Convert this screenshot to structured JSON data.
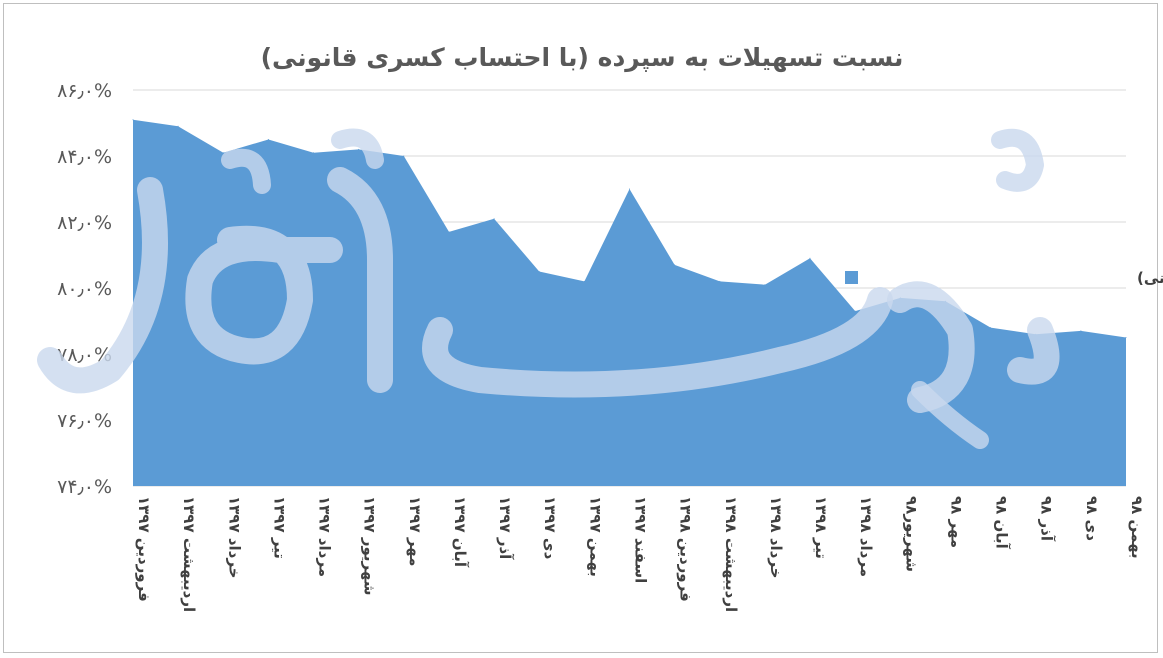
{
  "chart_data": {
    "type": "area",
    "title": "نسبت تسهیلات به سپرده (با احتساب کسری قانونی)",
    "xlabel": "",
    "ylabel": "",
    "ylim": [
      74,
      86
    ],
    "yticks": [
      {
        "value": 74,
        "label": "۷۴٫۰%"
      },
      {
        "value": 76,
        "label": "۷۶٫۰%"
      },
      {
        "value": 78,
        "label": "۷۸٫۰%"
      },
      {
        "value": 80,
        "label": "۸۰٫۰%"
      },
      {
        "value": 82,
        "label": "۸۲٫۰%"
      },
      {
        "value": 84,
        "label": "۸۴٫۰%"
      },
      {
        "value": 86,
        "label": "۸۶٫۰%"
      }
    ],
    "grid": true,
    "legend_position": "right",
    "categories": [
      "فروردین ۱۳۹۷",
      "اردیبهشت ۱۳۹۷",
      "خرداد ۱۳۹۷",
      "تیر ۱۳۹۷",
      "مرداد ۱۳۹۷",
      "شهریور ۱۳۹۷",
      "مهر ۱۳۹۷",
      "آبان ۱۳۹۷",
      "آذر ۱۳۹۷",
      "دی ۱۳۹۷",
      "بهمن ۱۳۹۷",
      "اسفند ۱۳۹۷",
      "فروردین ۱۳۹۸",
      "اردیبهشت ۱۳۹۸",
      "خرداد ۱۳۹۸",
      "تیر ۱۳۹۸",
      "مرداد ۱۳۹۸",
      "شهریور۹۸",
      "مهر ۹۸",
      "آبان ۹۸",
      "آذر ۹۸",
      "دی ۹۸",
      "بهمن ۹۸"
    ],
    "series": [
      {
        "name": "تسهیلات به سپرده (با کسری قانونی)",
        "color": "#5b9bd5",
        "values": [
          85.1,
          84.9,
          84.1,
          84.5,
          84.1,
          84.2,
          84.0,
          81.7,
          82.1,
          80.5,
          80.2,
          83.0,
          80.7,
          80.2,
          80.1,
          80.9,
          79.3,
          79.7,
          79.6,
          78.8,
          78.6,
          78.7,
          78.5
        ]
      }
    ]
  }
}
